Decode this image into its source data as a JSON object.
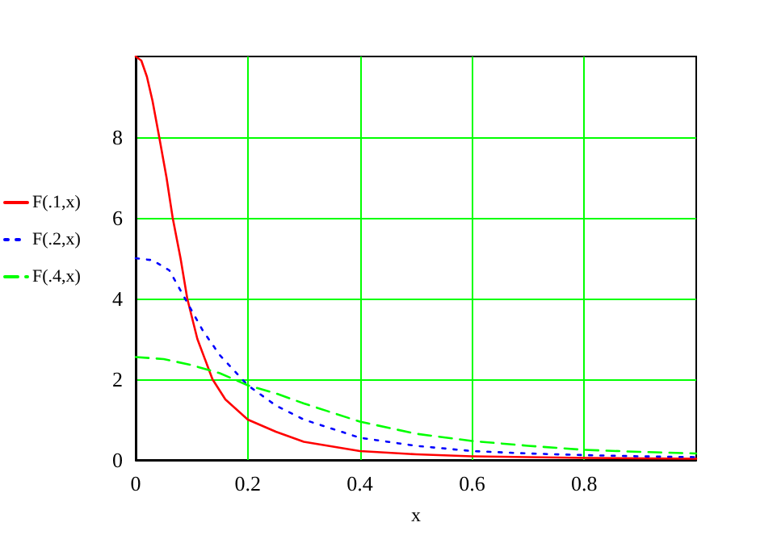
{
  "chart_data": {
    "type": "line",
    "xlabel": "x",
    "xlim": [
      0,
      1
    ],
    "xticks": [
      0,
      0.2,
      0.4,
      0.6,
      0.8
    ],
    "ylim": [
      0,
      10
    ],
    "yticks": [
      0,
      2,
      4,
      6,
      8
    ],
    "grid": true,
    "legend": "left",
    "series": [
      {
        "name": "F(.1,x)",
        "color": "#ff0000",
        "line_style": "solid",
        "x": [
          0,
          0.01,
          0.02,
          0.03,
          0.042,
          0.055,
          0.066,
          0.08,
          0.092,
          0.11,
          0.137,
          0.16,
          0.2,
          0.25,
          0.3,
          0.4,
          0.5,
          0.6,
          0.7,
          0.8,
          0.9,
          1.0
        ],
        "values": [
          10,
          9.9,
          9.5,
          8.9,
          8,
          7,
          6,
          5,
          4,
          3,
          2,
          1.5,
          1.0,
          0.7,
          0.45,
          0.22,
          0.14,
          0.09,
          0.07,
          0.05,
          0.04,
          0.03
        ]
      },
      {
        "name": "F(.2,x)",
        "color": "#0000ff",
        "line_style": "dotted",
        "x": [
          0,
          0.03,
          0.06,
          0.09,
          0.12,
          0.15,
          0.2,
          0.25,
          0.3,
          0.4,
          0.5,
          0.6,
          0.7,
          0.8,
          0.9,
          1.0
        ],
        "values": [
          5,
          4.95,
          4.7,
          3.95,
          3.2,
          2.6,
          1.85,
          1.35,
          1.0,
          0.55,
          0.35,
          0.22,
          0.16,
          0.12,
          0.09,
          0.07
        ]
      },
      {
        "name": "F(.4,x)",
        "color": "#00ff00",
        "line_style": "dashed",
        "x": [
          0,
          0.05,
          0.1,
          0.15,
          0.2,
          0.25,
          0.3,
          0.4,
          0.5,
          0.6,
          0.7,
          0.8,
          0.9,
          1.0
        ],
        "values": [
          2.55,
          2.5,
          2.35,
          2.15,
          1.85,
          1.65,
          1.4,
          0.95,
          0.65,
          0.47,
          0.35,
          0.25,
          0.2,
          0.16
        ]
      }
    ]
  }
}
